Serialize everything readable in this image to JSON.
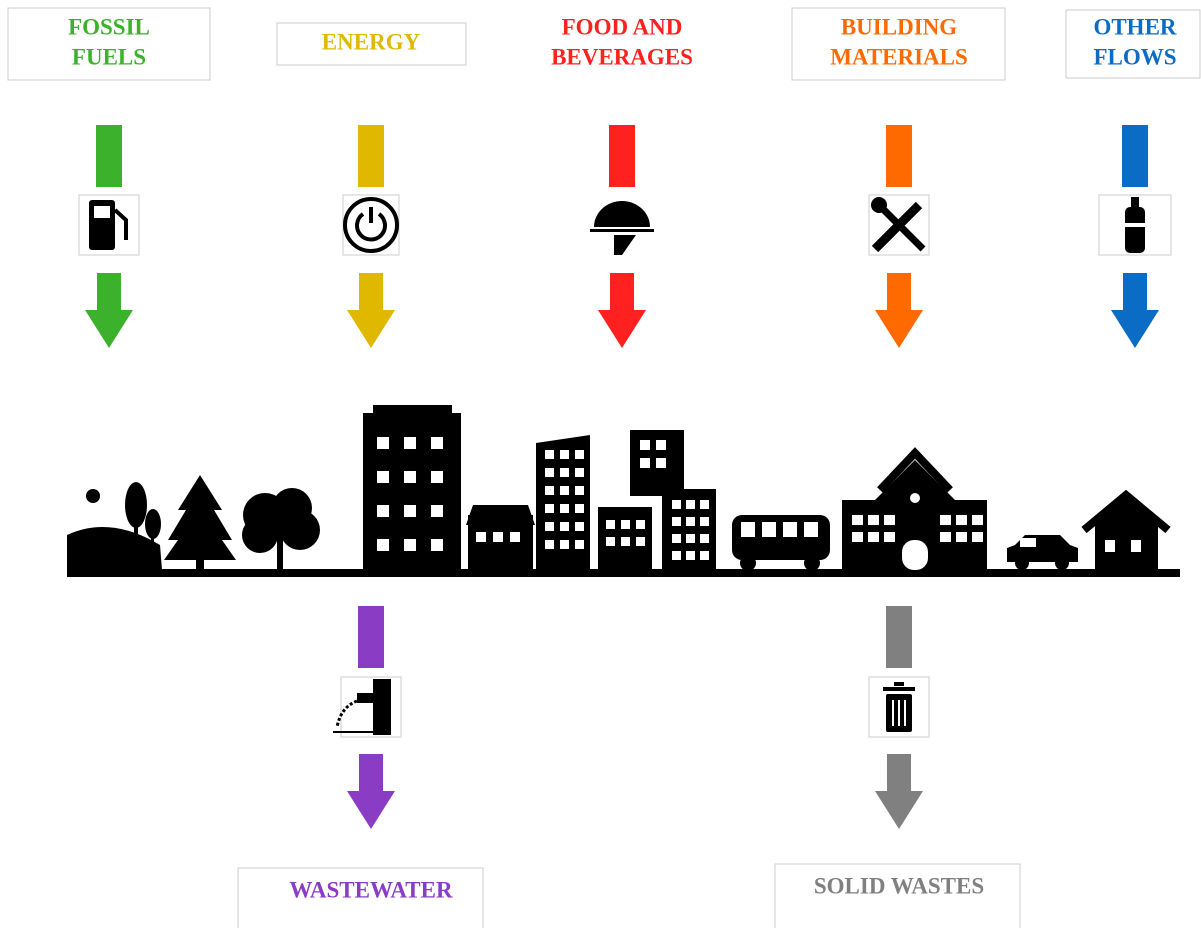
{
  "inputs": [
    {
      "lines": [
        "FOSSIL",
        "FUELS"
      ],
      "color": "#3cb22c"
    },
    {
      "lines": [
        "ENERGY"
      ],
      "color": "#e0b800"
    },
    {
      "lines": [
        "FOOD AND",
        "BEVERAGES"
      ],
      "color": "#ff2020"
    },
    {
      "lines": [
        "BUILDING",
        "MATERIALS"
      ],
      "color": "#ff6a00"
    },
    {
      "lines": [
        "OTHER",
        "FLOWS"
      ],
      "color": "#0a6cc4"
    }
  ],
  "outputs": [
    {
      "lines": [
        "WASTEWATER"
      ],
      "color": "#8a3cc4"
    },
    {
      "lines": [
        "SOLID WASTES"
      ],
      "color": "#808080"
    }
  ]
}
